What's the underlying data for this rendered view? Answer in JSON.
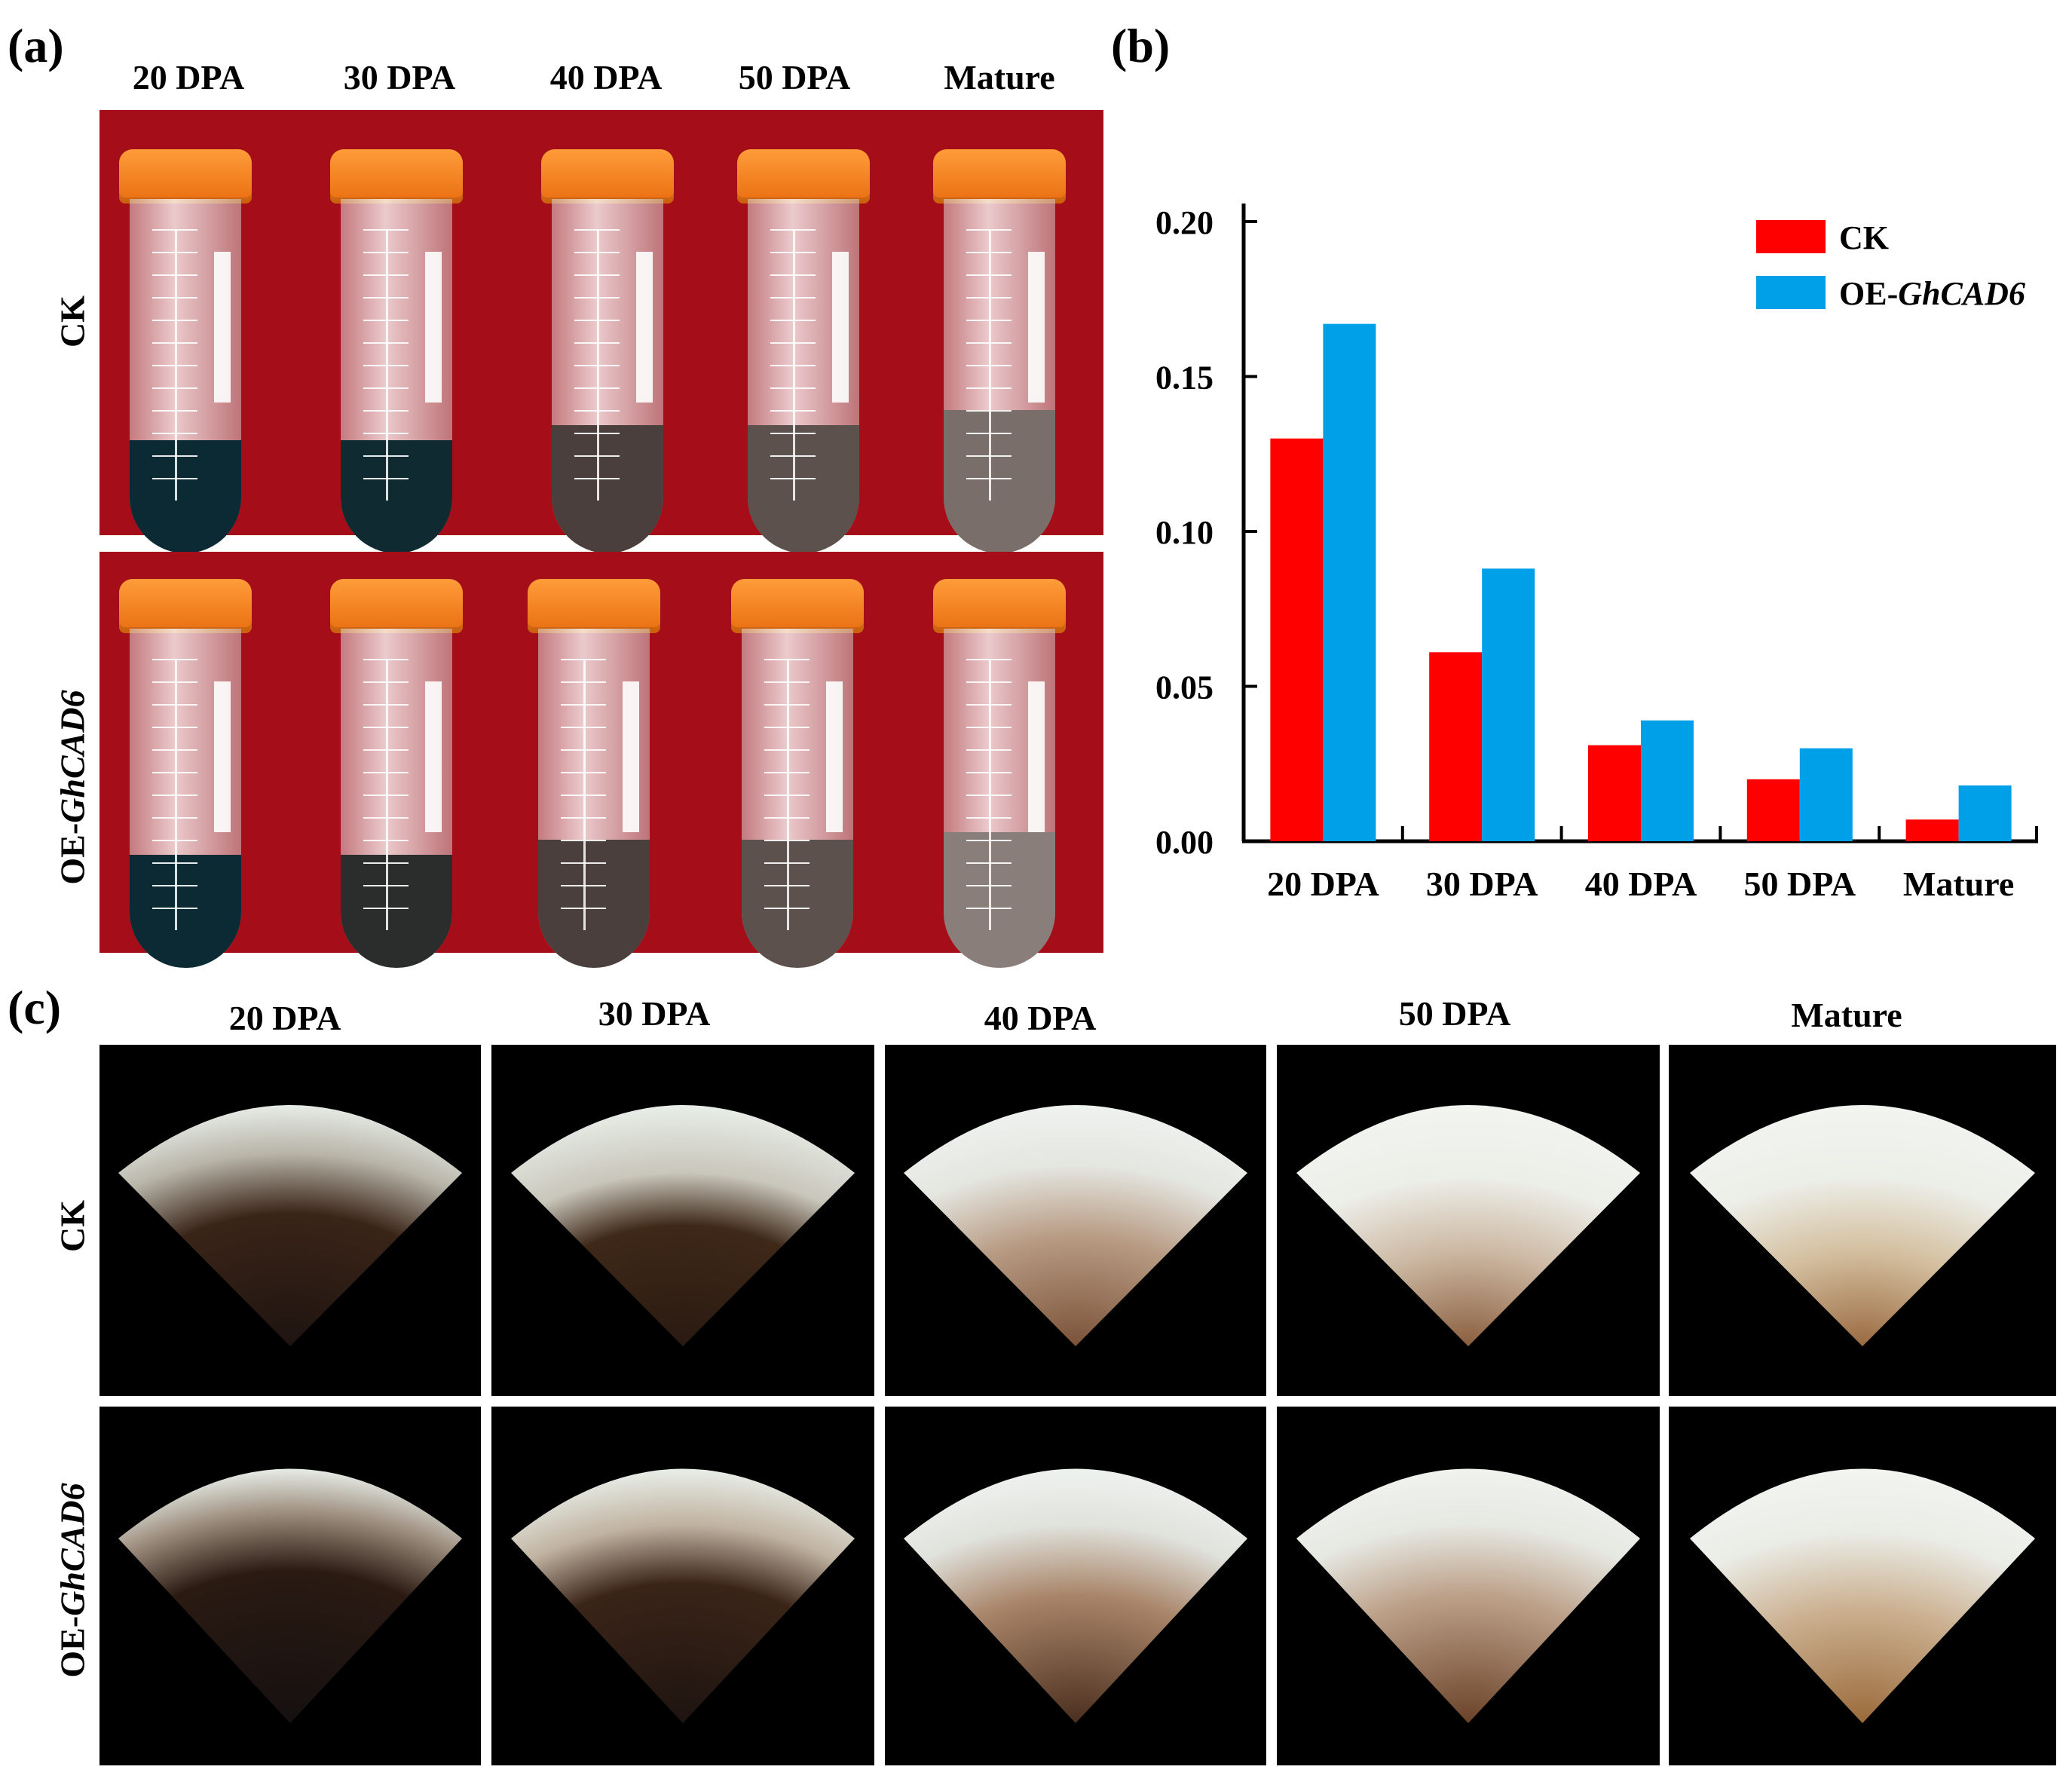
{
  "panels": {
    "a": "(a)",
    "b": "(b)",
    "c": "(c)"
  },
  "stages": [
    "20 DPA",
    "30 DPA",
    "40 DPA",
    "50 DPA",
    "Mature"
  ],
  "rows": {
    "ck": "CK",
    "oe_prefix": "OE-",
    "oe_gene": "GhCAD6"
  },
  "colors": {
    "ck": "#ff0000",
    "oe": "#00a0e9",
    "tube_bg": "#a50e18",
    "fan_bg": "#000000"
  },
  "chart_data": {
    "type": "bar",
    "categories": [
      "20 DPA",
      "30 DPA",
      "40 DPA",
      "50 DPA",
      "Mature"
    ],
    "series": [
      {
        "name": "CK",
        "values": [
          0.13,
          0.061,
          0.031,
          0.02,
          0.007
        ]
      },
      {
        "name": "OE-GhCAD6",
        "values": [
          0.167,
          0.088,
          0.039,
          0.03,
          0.018
        ]
      }
    ],
    "yticks": [
      "0.00",
      "0.05",
      "0.10",
      "0.15",
      "0.20"
    ],
    "ylim": [
      0,
      0.2
    ],
    "title": "",
    "xlabel": "",
    "ylabel": "",
    "legend": {
      "position": "top-right",
      "labels": [
        "CK",
        "OE-",
        "GhCAD6"
      ]
    }
  }
}
